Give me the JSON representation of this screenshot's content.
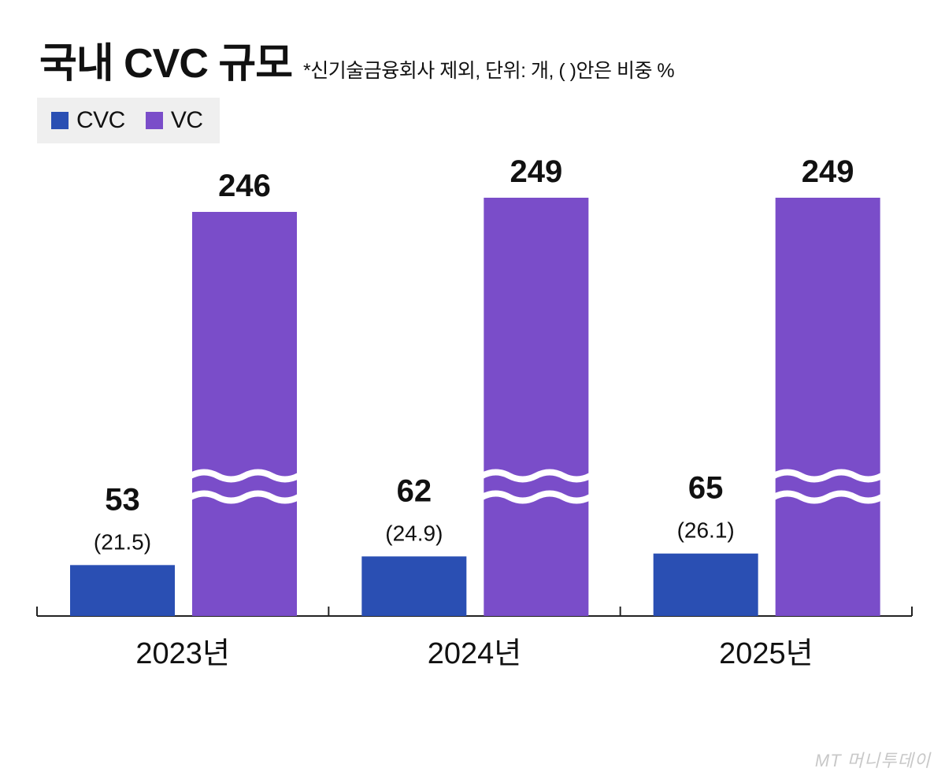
{
  "header": {
    "title": "국내 CVC 규모",
    "subtitle": "*신기술금융회사 제외, 단위: 개, (   )안은 비중 %"
  },
  "watermark": "MT 머니투데이",
  "colors": {
    "cvc": "#2a4fb3",
    "vc": "#7a4dc9",
    "axis": "#222222",
    "text": "#111111"
  },
  "chart_data": {
    "type": "bar",
    "title": "국내 CVC 규모",
    "note": "*신기술금융회사 제외, 단위: 개, (   )안은 비중 %",
    "categories": [
      "2023년",
      "2024년",
      "2025년"
    ],
    "series": [
      {
        "name": "CVC",
        "values": [
          53,
          62,
          65
        ],
        "labels": [
          "53",
          "62",
          "65"
        ],
        "shares": [
          "(21.5)",
          "(24.9)",
          "(26.1)"
        ]
      },
      {
        "name": "VC",
        "values": [
          246,
          249,
          249
        ],
        "labels": [
          "246",
          "249",
          "249"
        ],
        "axis_break": true
      }
    ],
    "legend": {
      "position": "top-left"
    },
    "ylim": [
      0,
      100
    ],
    "grid": false
  }
}
